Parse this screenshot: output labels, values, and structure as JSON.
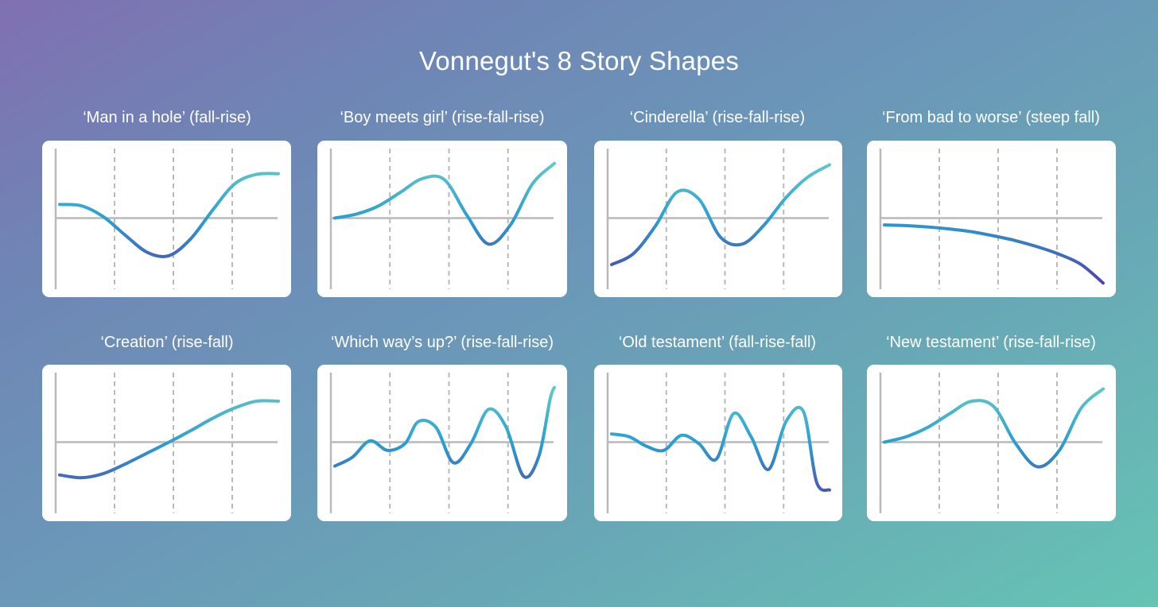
{
  "title": "Vonnegut's 8 Story Shapes",
  "colors": {
    "curve_start": "#553ea8",
    "curve_mid": "#2a9fd2",
    "curve_end": "#6fd3c6",
    "axis": "#b9b9b9",
    "grid": "#b9b9b9"
  },
  "chart_data": [
    {
      "type": "line",
      "title": "‘Man in a hole’ (fall-rise)",
      "x": [
        0,
        0.1,
        0.2,
        0.3,
        0.4,
        0.5,
        0.6,
        0.7,
        0.8,
        0.9,
        1
      ],
      "y": [
        0.2,
        0.18,
        0.02,
        -0.25,
        -0.5,
        -0.55,
        -0.3,
        0.12,
        0.5,
        0.64,
        0.65
      ],
      "ylim": [
        -1,
        1
      ],
      "xgrid": 4
    },
    {
      "type": "line",
      "title": "‘Boy meets girl’ (rise-fall-rise)",
      "x": [
        0,
        0.1,
        0.2,
        0.3,
        0.4,
        0.5,
        0.6,
        0.7,
        0.8,
        0.9,
        1
      ],
      "y": [
        0.0,
        0.06,
        0.18,
        0.38,
        0.58,
        0.56,
        0.05,
        -0.38,
        -0.1,
        0.5,
        0.8
      ],
      "ylim": [
        -1,
        1
      ],
      "xgrid": 4
    },
    {
      "type": "line",
      "title": "‘Cinderella’ (rise-fall-rise)",
      "x": [
        0,
        0.1,
        0.2,
        0.3,
        0.4,
        0.5,
        0.6,
        0.7,
        0.8,
        0.9,
        1
      ],
      "y": [
        -0.68,
        -0.52,
        -0.12,
        0.38,
        0.28,
        -0.28,
        -0.38,
        -0.1,
        0.3,
        0.6,
        0.78
      ],
      "ylim": [
        -1,
        1
      ],
      "xgrid": 4
    },
    {
      "type": "line",
      "title": "‘From bad to worse’ (steep fall)",
      "x": [
        0,
        0.1,
        0.2,
        0.3,
        0.4,
        0.5,
        0.6,
        0.7,
        0.8,
        0.9,
        1
      ],
      "y": [
        -0.1,
        -0.11,
        -0.13,
        -0.16,
        -0.2,
        -0.26,
        -0.33,
        -0.42,
        -0.53,
        -0.68,
        -0.95
      ],
      "ylim": [
        -1,
        1
      ],
      "xgrid": 4
    },
    {
      "type": "line",
      "title": "‘Creation’ (rise-fall)",
      "x": [
        0,
        0.1,
        0.2,
        0.3,
        0.4,
        0.5,
        0.6,
        0.7,
        0.8,
        0.9,
        1
      ],
      "y": [
        -0.48,
        -0.52,
        -0.46,
        -0.32,
        -0.16,
        0.0,
        0.17,
        0.35,
        0.5,
        0.6,
        0.6
      ],
      "ylim": [
        -1,
        1
      ],
      "xgrid": 4
    },
    {
      "type": "line",
      "title": "‘Which way’s up?’ (rise-fall-rise)",
      "x": [
        0,
        0.08,
        0.16,
        0.24,
        0.32,
        0.38,
        0.46,
        0.54,
        0.62,
        0.7,
        0.78,
        0.86,
        0.93,
        0.98,
        1
      ],
      "y": [
        -0.35,
        -0.22,
        0.02,
        -0.12,
        -0.02,
        0.3,
        0.22,
        -0.3,
        -0.02,
        0.48,
        0.22,
        -0.5,
        -0.2,
        0.62,
        0.8
      ],
      "ylim": [
        -1,
        1
      ],
      "xgrid": 4
    },
    {
      "type": "line",
      "title": "‘Old testament’ (fall-rise-fall)",
      "x": [
        0,
        0.08,
        0.16,
        0.24,
        0.32,
        0.4,
        0.48,
        0.56,
        0.64,
        0.72,
        0.8,
        0.88,
        0.94,
        1
      ],
      "y": [
        0.12,
        0.08,
        -0.06,
        -0.12,
        0.1,
        -0.02,
        -0.25,
        0.42,
        0.08,
        -0.4,
        0.3,
        0.45,
        -0.58,
        -0.7
      ],
      "ylim": [
        -1,
        1
      ],
      "xgrid": 4
    },
    {
      "type": "line",
      "title": "‘New testament’ (rise-fall-rise)",
      "x": [
        0,
        0.1,
        0.2,
        0.3,
        0.4,
        0.5,
        0.6,
        0.7,
        0.8,
        0.9,
        1
      ],
      "y": [
        0.0,
        0.08,
        0.22,
        0.42,
        0.6,
        0.52,
        -0.02,
        -0.36,
        -0.12,
        0.5,
        0.78
      ],
      "ylim": [
        -1,
        1
      ],
      "xgrid": 4
    }
  ]
}
